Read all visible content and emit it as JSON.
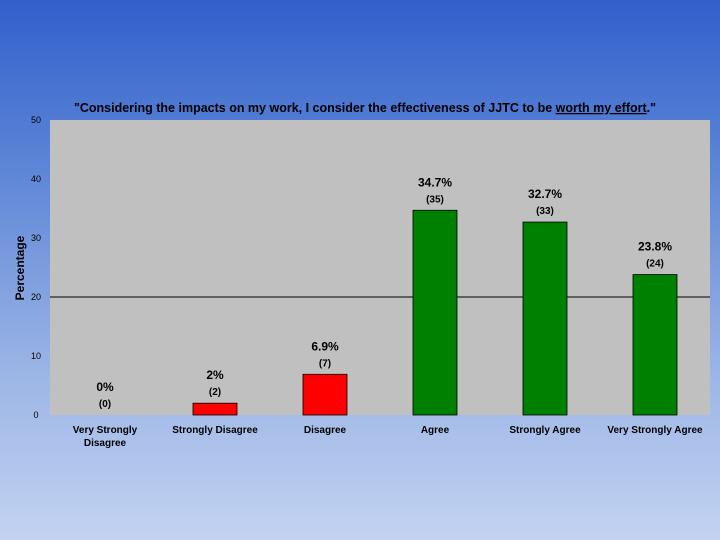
{
  "chart_data": {
    "type": "bar",
    "title": {
      "prefix": "\"Considering the impacts on my work, I consider the effectiveness of JJTC to be ",
      "emphasis": "worth my effort",
      "suffix": ".\""
    },
    "ylabel": "Percentage",
    "xlabel": "",
    "ylim": [
      0,
      50
    ],
    "yticks": [
      0,
      10,
      20,
      30,
      40,
      50
    ],
    "categories": [
      [
        "Very Strongly",
        "Disagree"
      ],
      [
        "Strongly Disagree"
      ],
      [
        "Disagree"
      ],
      [
        "Agree"
      ],
      [
        "Strongly Agree"
      ],
      [
        "Very Strongly Agree"
      ]
    ],
    "values": [
      0,
      2,
      6.9,
      34.7,
      32.7,
      23.8
    ],
    "counts": [
      0,
      2,
      7,
      35,
      33,
      24
    ],
    "percent_labels": [
      "0%",
      "2%",
      "6.9%",
      "34.7%",
      "32.7%",
      "23.8%"
    ],
    "count_labels": [
      "(0)",
      "(2)",
      "(7)",
      "(35)",
      "(33)",
      "(24)"
    ],
    "bar_colors": [
      "#ff0000",
      "#ff0000",
      "#ff0000",
      "#008000",
      "#008000",
      "#008000"
    ],
    "reference_line": 20,
    "grid": false,
    "plot_background": "#c0c0c0"
  }
}
